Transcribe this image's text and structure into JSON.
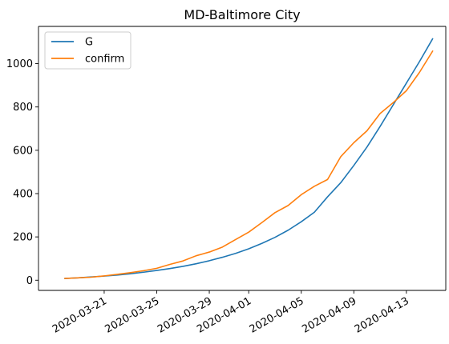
{
  "chart_data": {
    "type": "line",
    "title": "MD-Baltimore City",
    "xlabel": "",
    "ylabel": "",
    "x": [
      "2020-03-18",
      "2020-03-19",
      "2020-03-20",
      "2020-03-21",
      "2020-03-22",
      "2020-03-23",
      "2020-03-24",
      "2020-03-25",
      "2020-03-26",
      "2020-03-27",
      "2020-03-28",
      "2020-03-29",
      "2020-03-30",
      "2020-03-31",
      "2020-04-01",
      "2020-04-02",
      "2020-04-03",
      "2020-04-04",
      "2020-04-05",
      "2020-04-06",
      "2020-04-07",
      "2020-04-08",
      "2020-04-09",
      "2020-04-10",
      "2020-04-11",
      "2020-04-12",
      "2020-04-13",
      "2020-04-14",
      "2020-04-15"
    ],
    "series": [
      {
        "name": "G",
        "color": "#1f77b4",
        "values": [
          8,
          11,
          15,
          19,
          24,
          30,
          37,
          45,
          54,
          64,
          76,
          90,
          106,
          124,
          145,
          170,
          198,
          231,
          270,
          314,
          385,
          450,
          530,
          615,
          710,
          810,
          910,
          1010,
          1115
        ]
      },
      {
        "name": "confirm",
        "color": "#ff7f0e",
        "values": [
          8,
          11,
          14,
          20,
          27,
          35,
          44,
          55,
          73,
          89,
          113,
          130,
          153,
          188,
          222,
          266,
          312,
          345,
          395,
          434,
          465,
          570,
          635,
          690,
          770,
          820,
          875,
          960,
          1058
        ]
      }
    ],
    "x_ticks": [
      "2020-03-21",
      "2020-03-25",
      "2020-03-29",
      "2020-04-01",
      "2020-04-05",
      "2020-04-09",
      "2020-04-13"
    ],
    "y_ticks": [
      0,
      200,
      400,
      600,
      800,
      1000
    ],
    "ylim": [
      -47,
      1172
    ],
    "xlim": [
      "2020-03-16",
      "2020-04-16"
    ],
    "grid": false,
    "legend_position": "top-left"
  }
}
